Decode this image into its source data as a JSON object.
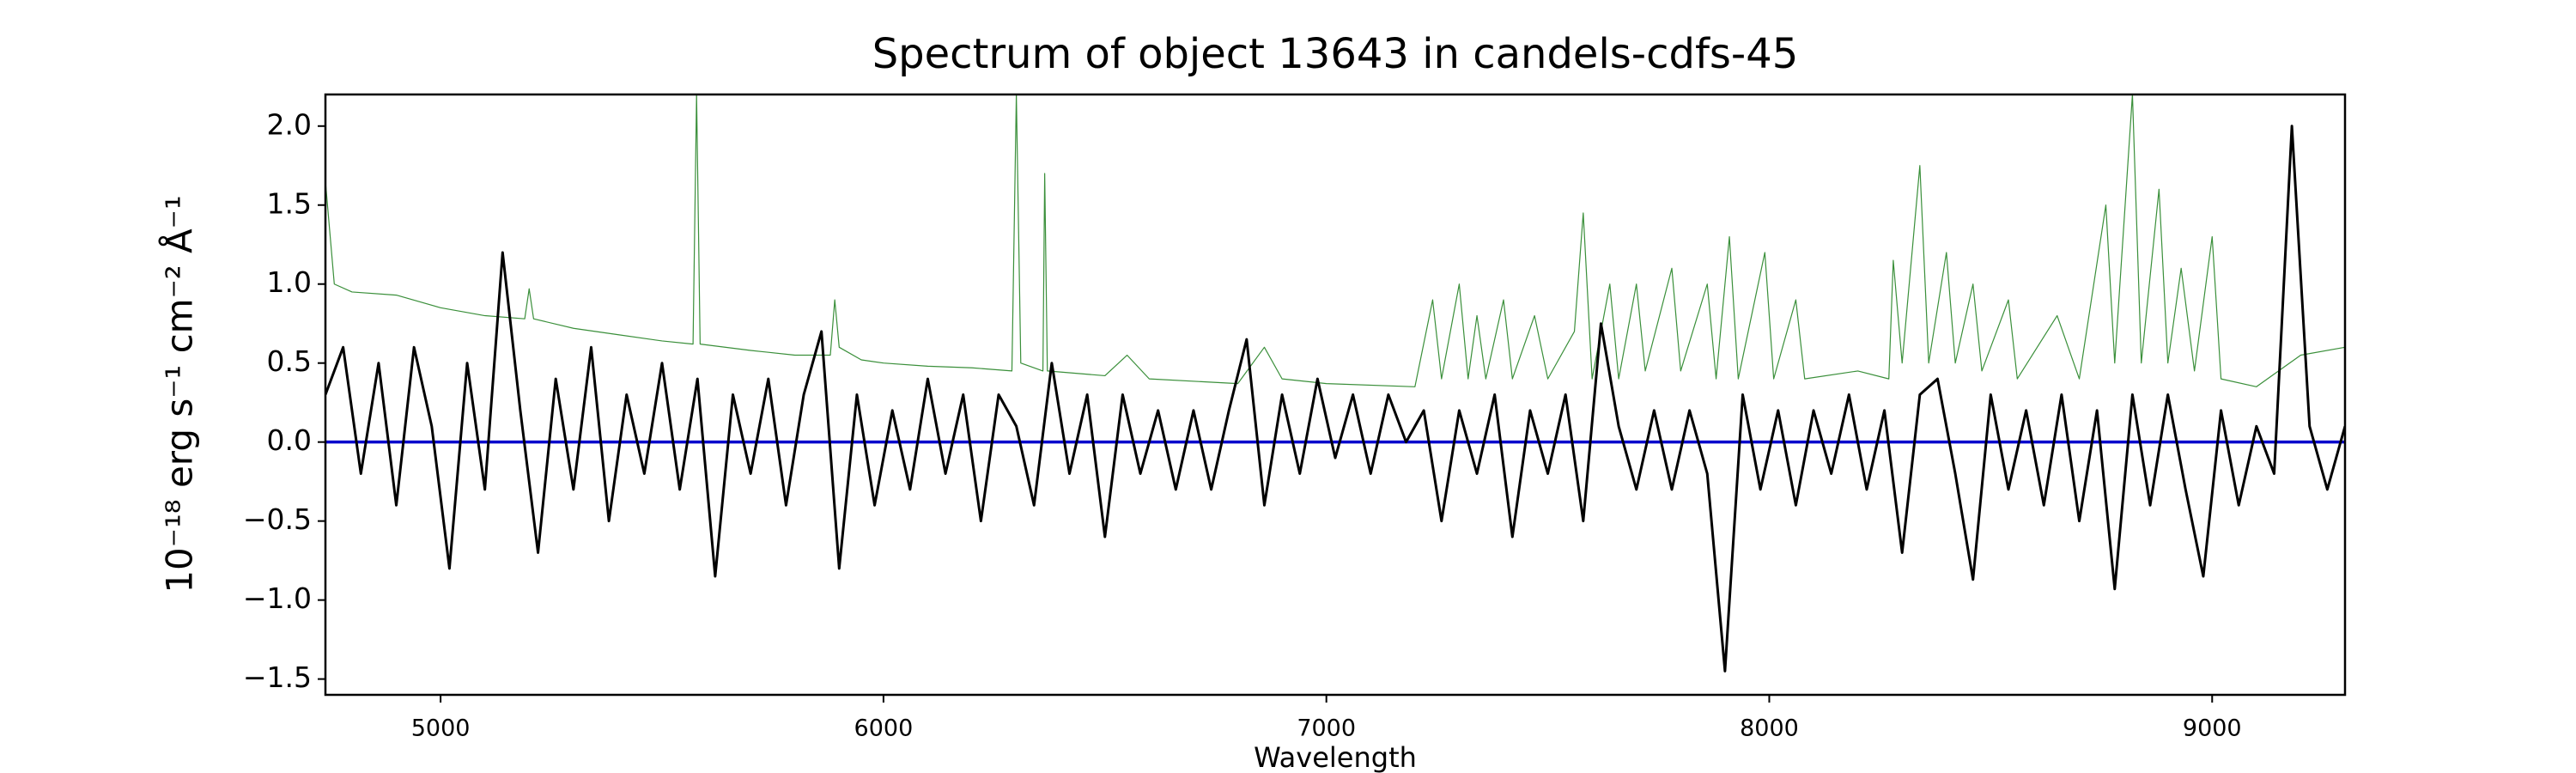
{
  "chart_data": {
    "type": "line",
    "title": "Spectrum of object 13643 in candels-cdfs-45",
    "xlabel": "Wavelength",
    "ylabel": "10⁻¹⁸ erg s⁻¹ cm⁻² Å⁻¹",
    "xlim": [
      4740,
      9300
    ],
    "ylim": [
      -1.6,
      2.2
    ],
    "xticks": [
      5000,
      6000,
      7000,
      8000,
      9000
    ],
    "yticks": [
      {
        "value": -1.5,
        "label": "−1.5"
      },
      {
        "value": -1.0,
        "label": "−1.0"
      },
      {
        "value": -0.5,
        "label": "−0.5"
      },
      {
        "value": 0.0,
        "label": "0.0"
      },
      {
        "value": 0.5,
        "label": "0.5"
      },
      {
        "value": 1.0,
        "label": "1.0"
      },
      {
        "value": 1.5,
        "label": "1.5"
      },
      {
        "value": 2.0,
        "label": "2.0"
      }
    ],
    "grid": false,
    "series": [
      {
        "color": "#3a8f3a",
        "width": 1.2,
        "x": [
          4740,
          4760,
          4800,
          4900,
          5000,
          5100,
          5190,
          5200,
          5210,
          5300,
          5400,
          5500,
          5570,
          5578,
          5586,
          5700,
          5800,
          5880,
          5890,
          5900,
          5950,
          6000,
          6100,
          6200,
          6290,
          6300,
          6310,
          6360,
          6364,
          6370,
          6500,
          6550,
          6600,
          6800,
          6860,
          6900,
          7000,
          7200,
          7240,
          7260,
          7300,
          7320,
          7340,
          7360,
          7400,
          7420,
          7470,
          7500,
          7560,
          7580,
          7600,
          7640,
          7660,
          7700,
          7720,
          7780,
          7800,
          7860,
          7880,
          7910,
          7930,
          7990,
          8010,
          8060,
          8080,
          8200,
          8270,
          8280,
          8300,
          8340,
          8360,
          8400,
          8420,
          8460,
          8480,
          8540,
          8560,
          8650,
          8700,
          8760,
          8780,
          8820,
          8840,
          8880,
          8900,
          8930,
          8960,
          9000,
          9020,
          9100,
          9200,
          9300
        ],
        "values": [
          1.65,
          1.0,
          0.95,
          0.93,
          0.85,
          0.8,
          0.78,
          0.97,
          0.78,
          0.72,
          0.68,
          0.64,
          0.62,
          2.2,
          0.62,
          0.58,
          0.55,
          0.55,
          0.9,
          0.6,
          0.52,
          0.5,
          0.48,
          0.47,
          0.45,
          2.2,
          0.5,
          0.45,
          1.7,
          0.45,
          0.42,
          0.55,
          0.4,
          0.37,
          0.6,
          0.4,
          0.37,
          0.35,
          0.9,
          0.4,
          1.0,
          0.4,
          0.8,
          0.4,
          0.9,
          0.4,
          0.8,
          0.4,
          0.7,
          1.45,
          0.4,
          1.0,
          0.4,
          1.0,
          0.45,
          1.1,
          0.45,
          1.0,
          0.4,
          1.3,
          0.4,
          1.2,
          0.4,
          0.9,
          0.4,
          0.45,
          0.4,
          1.15,
          0.5,
          1.75,
          0.5,
          1.2,
          0.5,
          1.0,
          0.45,
          0.9,
          0.4,
          0.8,
          0.4,
          1.5,
          0.5,
          2.2,
          0.5,
          1.6,
          0.5,
          1.1,
          0.45,
          1.3,
          0.4,
          0.35,
          0.55,
          0.6
        ]
      },
      {
        "color": "#0000cc",
        "width": 3.5,
        "x": [
          4740,
          9300
        ],
        "values": [
          0,
          0
        ]
      },
      {
        "color": "#000000",
        "width": 3,
        "x": [
          4740,
          4780,
          4820,
          4860,
          4900,
          4940,
          4980,
          5020,
          5060,
          5100,
          5140,
          5180,
          5220,
          5260,
          5300,
          5340,
          5380,
          5420,
          5460,
          5500,
          5540,
          5580,
          5620,
          5660,
          5700,
          5740,
          5780,
          5820,
          5860,
          5900,
          5940,
          5980,
          6020,
          6060,
          6100,
          6140,
          6180,
          6220,
          6260,
          6300,
          6340,
          6380,
          6420,
          6460,
          6500,
          6540,
          6580,
          6620,
          6660,
          6700,
          6740,
          6780,
          6820,
          6860,
          6900,
          6940,
          6980,
          7020,
          7060,
          7100,
          7140,
          7180,
          7220,
          7260,
          7300,
          7340,
          7380,
          7420,
          7460,
          7500,
          7540,
          7580,
          7620,
          7660,
          7700,
          7740,
          7780,
          7820,
          7860,
          7900,
          7940,
          7980,
          8020,
          8060,
          8100,
          8140,
          8180,
          8220,
          8260,
          8300,
          8340,
          8380,
          8420,
          8460,
          8500,
          8540,
          8580,
          8620,
          8660,
          8700,
          8740,
          8780,
          8820,
          8860,
          8900,
          8940,
          8980,
          9020,
          9060,
          9100,
          9140,
          9180,
          9220,
          9260,
          9300
        ],
        "values": [
          0.3,
          0.6,
          -0.2,
          0.5,
          -0.4,
          0.6,
          0.1,
          -0.8,
          0.5,
          -0.3,
          1.2,
          0.2,
          -0.7,
          0.4,
          -0.3,
          0.6,
          -0.5,
          0.3,
          -0.2,
          0.5,
          -0.3,
          0.4,
          -0.85,
          0.3,
          -0.2,
          0.4,
          -0.4,
          0.3,
          0.7,
          -0.8,
          0.3,
          -0.4,
          0.2,
          -0.3,
          0.4,
          -0.2,
          0.3,
          -0.5,
          0.3,
          0.1,
          -0.4,
          0.5,
          -0.2,
          0.3,
          -0.6,
          0.3,
          -0.2,
          0.2,
          -0.3,
          0.2,
          -0.3,
          0.2,
          0.65,
          -0.4,
          0.3,
          -0.2,
          0.4,
          -0.1,
          0.3,
          -0.2,
          0.3,
          0.0,
          0.2,
          -0.5,
          0.2,
          -0.2,
          0.3,
          -0.6,
          0.2,
          -0.2,
          0.3,
          -0.5,
          0.75,
          0.1,
          -0.3,
          0.2,
          -0.3,
          0.2,
          -0.2,
          -1.45,
          0.3,
          -0.3,
          0.2,
          -0.4,
          0.2,
          -0.2,
          0.3,
          -0.3,
          0.2,
          -0.7,
          0.3,
          0.4,
          -0.2,
          -0.87,
          0.3,
          -0.3,
          0.2,
          -0.4,
          0.3,
          -0.5,
          0.2,
          -0.93,
          0.3,
          -0.4,
          0.3,
          -0.3,
          -0.85,
          0.2,
          -0.4,
          0.1,
          -0.2,
          2.0,
          0.1,
          -0.3,
          0.1
        ]
      }
    ]
  }
}
